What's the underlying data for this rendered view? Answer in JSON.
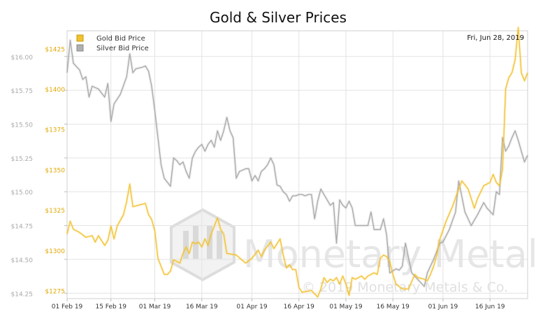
{
  "chart_data": {
    "type": "line",
    "title": "Gold & Silver Prices",
    "date_label": "Fri, Jun 28, 2019",
    "watermark": {
      "brand": "Monetary Metals",
      "copyright": "© 2019 Monetary Metals & Co."
    },
    "legend": {
      "placement": "top-left",
      "items": [
        {
          "label": "Gold Bid Price",
          "color": "#f2c12e"
        },
        {
          "label": "Silver Bid Price",
          "color": "#a8a8a8"
        }
      ]
    },
    "x_axis": {
      "start": "2019-02-01",
      "end": "2019-06-28",
      "ticks": [
        {
          "date": "2019-02-01",
          "label": "01 Feb 19"
        },
        {
          "date": "2019-02-15",
          "label": "15 Feb 19"
        },
        {
          "date": "2019-03-01",
          "label": "01 Mar 19"
        },
        {
          "date": "2019-03-16",
          "label": "16 Mar 19"
        },
        {
          "date": "2019-04-01",
          "label": "01 Apr 19"
        },
        {
          "date": "2019-04-16",
          "label": "16 Apr 19"
        },
        {
          "date": "2019-05-01",
          "label": "01 May 19"
        },
        {
          "date": "2019-05-16",
          "label": "16 May 19"
        },
        {
          "date": "2019-06-01",
          "label": "01 Jun 19"
        },
        {
          "date": "2019-06-16",
          "label": "16 Jun 19"
        }
      ]
    },
    "y_right": {
      "series": "Gold Bid Price",
      "min": 1270,
      "max": 1436,
      "ticks": [
        1275,
        1300,
        1325,
        1350,
        1375,
        1400,
        1425
      ],
      "tick_labels": [
        "$1275",
        "$1300",
        "$1325",
        "$1350",
        "$1375",
        "$1400",
        "$1425"
      ],
      "color": "#e0a800"
    },
    "y_left": {
      "series": "Silver Bid Price",
      "min": 14.21,
      "max": 16.19,
      "ticks": [
        14.25,
        14.5,
        14.75,
        15.0,
        15.25,
        15.5,
        15.75,
        16.0
      ],
      "tick_labels": [
        "$14.25",
        "$14.50",
        "$14.75",
        "$15.00",
        "$15.25",
        "$15.50",
        "$15.75",
        "$16.00"
      ],
      "color": "#aaaaaa"
    },
    "grid": true,
    "series": [
      {
        "name": "Gold Bid Price",
        "color": "#f2c12e",
        "axis": "y_right",
        "points": [
          [
            "2019-02-01",
            1310
          ],
          [
            "2019-02-02",
            1318
          ],
          [
            "2019-02-03",
            1313
          ],
          [
            "2019-02-05",
            1311
          ],
          [
            "2019-02-07",
            1308
          ],
          [
            "2019-02-09",
            1309
          ],
          [
            "2019-02-10",
            1305
          ],
          [
            "2019-02-11",
            1309
          ],
          [
            "2019-02-13",
            1303
          ],
          [
            "2019-02-14",
            1306
          ],
          [
            "2019-02-15",
            1315
          ],
          [
            "2019-02-16",
            1307
          ],
          [
            "2019-02-17",
            1315
          ],
          [
            "2019-02-19",
            1322
          ],
          [
            "2019-02-20",
            1330
          ],
          [
            "2019-02-21",
            1341
          ],
          [
            "2019-02-22",
            1327
          ],
          [
            "2019-02-24",
            1328
          ],
          [
            "2019-02-26",
            1329
          ],
          [
            "2019-02-27",
            1322
          ],
          [
            "2019-02-28",
            1319
          ],
          [
            "2019-03-01",
            1312
          ],
          [
            "2019-03-02",
            1295
          ],
          [
            "2019-03-04",
            1285
          ],
          [
            "2019-03-05",
            1285
          ],
          [
            "2019-03-06",
            1287
          ],
          [
            "2019-03-07",
            1294
          ],
          [
            "2019-03-09",
            1292
          ],
          [
            "2019-03-10",
            1298
          ],
          [
            "2019-03-11",
            1302
          ],
          [
            "2019-03-12",
            1298
          ],
          [
            "2019-03-13",
            1305
          ],
          [
            "2019-03-14",
            1304
          ],
          [
            "2019-03-15",
            1305
          ],
          [
            "2019-03-16",
            1302
          ],
          [
            "2019-03-17",
            1307
          ],
          [
            "2019-03-18",
            1303
          ],
          [
            "2019-03-19",
            1310
          ],
          [
            "2019-03-21",
            1320
          ],
          [
            "2019-03-22",
            1313
          ],
          [
            "2019-03-23",
            1310
          ],
          [
            "2019-03-24",
            1298
          ],
          [
            "2019-03-27",
            1297
          ],
          [
            "2019-03-30",
            1292
          ],
          [
            "2019-04-01",
            1295
          ],
          [
            "2019-04-03",
            1300
          ],
          [
            "2019-04-04",
            1296
          ],
          [
            "2019-04-05",
            1300
          ],
          [
            "2019-04-07",
            1305
          ],
          [
            "2019-04-08",
            1301
          ],
          [
            "2019-04-10",
            1307
          ],
          [
            "2019-04-11",
            1297
          ],
          [
            "2019-04-12",
            1289
          ],
          [
            "2019-04-13",
            1291
          ],
          [
            "2019-04-14",
            1288
          ],
          [
            "2019-04-15",
            1288
          ],
          [
            "2019-04-16",
            1277
          ],
          [
            "2019-04-17",
            1274
          ],
          [
            "2019-04-20",
            1275
          ],
          [
            "2019-04-22",
            1271
          ],
          [
            "2019-04-23",
            1276
          ],
          [
            "2019-04-24",
            1283
          ],
          [
            "2019-04-25",
            1280
          ],
          [
            "2019-04-26",
            1282
          ],
          [
            "2019-04-27",
            1281
          ],
          [
            "2019-04-28",
            1283
          ],
          [
            "2019-04-29",
            1279
          ],
          [
            "2019-04-30",
            1284
          ],
          [
            "2019-05-01",
            1279
          ],
          [
            "2019-05-02",
            1272
          ],
          [
            "2019-05-03",
            1283
          ],
          [
            "2019-05-04",
            1282
          ],
          [
            "2019-05-06",
            1284
          ],
          [
            "2019-05-07",
            1282
          ],
          [
            "2019-05-08",
            1284
          ],
          [
            "2019-05-10",
            1286
          ],
          [
            "2019-05-11",
            1285
          ],
          [
            "2019-05-12",
            1295
          ],
          [
            "2019-05-13",
            1297
          ],
          [
            "2019-05-14",
            1296
          ],
          [
            "2019-05-15",
            1293
          ],
          [
            "2019-05-16",
            1285
          ],
          [
            "2019-05-17",
            1279
          ],
          [
            "2019-05-19",
            1276
          ],
          [
            "2019-05-21",
            1276
          ],
          [
            "2019-05-23",
            1285
          ],
          [
            "2019-05-24",
            1283
          ],
          [
            "2019-05-26",
            1282
          ],
          [
            "2019-05-27",
            1281
          ],
          [
            "2019-05-28",
            1285
          ],
          [
            "2019-05-29",
            1290
          ],
          [
            "2019-05-30",
            1297
          ],
          [
            "2019-05-31",
            1307
          ],
          [
            "2019-06-02",
            1318
          ],
          [
            "2019-06-04",
            1327
          ],
          [
            "2019-06-06",
            1338
          ],
          [
            "2019-06-07",
            1343
          ],
          [
            "2019-06-09",
            1338
          ],
          [
            "2019-06-11",
            1326
          ],
          [
            "2019-06-12",
            1332
          ],
          [
            "2019-06-14",
            1340
          ],
          [
            "2019-06-16",
            1342
          ],
          [
            "2019-06-17",
            1347
          ],
          [
            "2019-06-18",
            1342
          ],
          [
            "2019-06-19",
            1340
          ],
          [
            "2019-06-20",
            1350
          ],
          [
            "2019-06-21",
            1400
          ],
          [
            "2019-06-22",
            1407
          ],
          [
            "2019-06-23",
            1410
          ],
          [
            "2019-06-24",
            1418
          ],
          [
            "2019-06-25",
            1438
          ],
          [
            "2019-06-26",
            1410
          ],
          [
            "2019-06-27",
            1405
          ],
          [
            "2019-06-28",
            1410
          ]
        ]
      },
      {
        "name": "Silver Bid Price",
        "color": "#a8a8a8",
        "axis": "y_left",
        "points": [
          [
            "2019-02-01",
            15.88
          ],
          [
            "2019-02-02",
            16.12
          ],
          [
            "2019-02-03",
            15.95
          ],
          [
            "2019-02-05",
            15.9
          ],
          [
            "2019-02-06",
            15.83
          ],
          [
            "2019-02-07",
            15.85
          ],
          [
            "2019-02-08",
            15.7
          ],
          [
            "2019-02-09",
            15.78
          ],
          [
            "2019-02-11",
            15.76
          ],
          [
            "2019-02-13",
            15.7
          ],
          [
            "2019-02-14",
            15.8
          ],
          [
            "2019-02-15",
            15.52
          ],
          [
            "2019-02-16",
            15.65
          ],
          [
            "2019-02-18",
            15.72
          ],
          [
            "2019-02-20",
            15.85
          ],
          [
            "2019-02-21",
            16.02
          ],
          [
            "2019-02-22",
            15.88
          ],
          [
            "2019-02-23",
            15.91
          ],
          [
            "2019-02-25",
            15.92
          ],
          [
            "2019-02-26",
            15.93
          ],
          [
            "2019-02-27",
            15.89
          ],
          [
            "2019-02-28",
            15.78
          ],
          [
            "2019-03-01",
            15.6
          ],
          [
            "2019-03-02",
            15.4
          ],
          [
            "2019-03-03",
            15.2
          ],
          [
            "2019-03-04",
            15.1
          ],
          [
            "2019-03-05",
            15.07
          ],
          [
            "2019-03-06",
            15.04
          ],
          [
            "2019-03-07",
            15.25
          ],
          [
            "2019-03-08",
            15.23
          ],
          [
            "2019-03-09",
            15.2
          ],
          [
            "2019-03-10",
            15.22
          ],
          [
            "2019-03-11",
            15.15
          ],
          [
            "2019-03-12",
            15.1
          ],
          [
            "2019-03-13",
            15.25
          ],
          [
            "2019-03-14",
            15.3
          ],
          [
            "2019-03-15",
            15.33
          ],
          [
            "2019-03-16",
            15.35
          ],
          [
            "2019-03-17",
            15.3
          ],
          [
            "2019-03-18",
            15.35
          ],
          [
            "2019-03-19",
            15.38
          ],
          [
            "2019-03-20",
            15.33
          ],
          [
            "2019-03-21",
            15.45
          ],
          [
            "2019-03-22",
            15.38
          ],
          [
            "2019-03-23",
            15.45
          ],
          [
            "2019-03-24",
            15.55
          ],
          [
            "2019-03-25",
            15.45
          ],
          [
            "2019-03-26",
            15.4
          ],
          [
            "2019-03-27",
            15.1
          ],
          [
            "2019-03-28",
            15.15
          ],
          [
            "2019-03-30",
            15.17
          ],
          [
            "2019-03-31",
            15.17
          ],
          [
            "2019-04-01",
            15.08
          ],
          [
            "2019-04-02",
            15.12
          ],
          [
            "2019-04-03",
            15.08
          ],
          [
            "2019-04-04",
            15.15
          ],
          [
            "2019-04-05",
            15.17
          ],
          [
            "2019-04-06",
            15.2
          ],
          [
            "2019-04-07",
            15.25
          ],
          [
            "2019-04-08",
            15.2
          ],
          [
            "2019-04-09",
            15.05
          ],
          [
            "2019-04-10",
            15.04
          ],
          [
            "2019-04-11",
            15.0
          ],
          [
            "2019-04-12",
            14.98
          ],
          [
            "2019-04-13",
            14.93
          ],
          [
            "2019-04-14",
            14.97
          ],
          [
            "2019-04-15",
            14.97
          ],
          [
            "2019-04-16",
            14.98
          ],
          [
            "2019-04-17",
            14.98
          ],
          [
            "2019-04-18",
            14.97
          ],
          [
            "2019-04-19",
            14.98
          ],
          [
            "2019-04-20",
            14.98
          ],
          [
            "2019-04-21",
            14.8
          ],
          [
            "2019-04-22",
            14.93
          ],
          [
            "2019-04-23",
            15.02
          ],
          [
            "2019-04-24",
            14.98
          ],
          [
            "2019-04-25",
            14.94
          ],
          [
            "2019-04-26",
            14.9
          ],
          [
            "2019-04-27",
            14.92
          ],
          [
            "2019-04-28",
            14.62
          ],
          [
            "2019-04-29",
            14.94
          ],
          [
            "2019-04-30",
            14.9
          ],
          [
            "2019-05-01",
            14.88
          ],
          [
            "2019-05-02",
            14.93
          ],
          [
            "2019-05-03",
            14.88
          ],
          [
            "2019-05-04",
            14.75
          ],
          [
            "2019-05-06",
            14.75
          ],
          [
            "2019-05-08",
            14.75
          ],
          [
            "2019-05-09",
            14.85
          ],
          [
            "2019-05-10",
            14.72
          ],
          [
            "2019-05-12",
            14.72
          ],
          [
            "2019-05-13",
            14.8
          ],
          [
            "2019-05-14",
            14.68
          ],
          [
            "2019-05-15",
            14.4
          ],
          [
            "2019-05-17",
            14.43
          ],
          [
            "2019-05-18",
            14.42
          ],
          [
            "2019-05-19",
            14.45
          ],
          [
            "2019-05-20",
            14.62
          ],
          [
            "2019-05-22",
            14.4
          ],
          [
            "2019-05-24",
            14.35
          ],
          [
            "2019-05-26",
            14.3
          ],
          [
            "2019-05-27",
            14.4
          ],
          [
            "2019-05-29",
            14.5
          ],
          [
            "2019-05-30",
            14.56
          ],
          [
            "2019-05-31",
            14.62
          ],
          [
            "2019-06-01",
            14.63
          ],
          [
            "2019-06-03",
            14.72
          ],
          [
            "2019-06-05",
            14.85
          ],
          [
            "2019-06-06",
            15.08
          ],
          [
            "2019-06-08",
            14.85
          ],
          [
            "2019-06-10",
            14.75
          ],
          [
            "2019-06-12",
            14.83
          ],
          [
            "2019-06-14",
            14.92
          ],
          [
            "2019-06-15",
            14.88
          ],
          [
            "2019-06-17",
            14.83
          ],
          [
            "2019-06-18",
            15.0
          ],
          [
            "2019-06-19",
            14.98
          ],
          [
            "2019-06-20",
            15.4
          ],
          [
            "2019-06-21",
            15.3
          ],
          [
            "2019-06-22",
            15.34
          ],
          [
            "2019-06-23",
            15.4
          ],
          [
            "2019-06-24",
            15.45
          ],
          [
            "2019-06-25",
            15.38
          ],
          [
            "2019-06-26",
            15.3
          ],
          [
            "2019-06-27",
            15.22
          ],
          [
            "2019-06-28",
            15.27
          ]
        ]
      }
    ]
  }
}
